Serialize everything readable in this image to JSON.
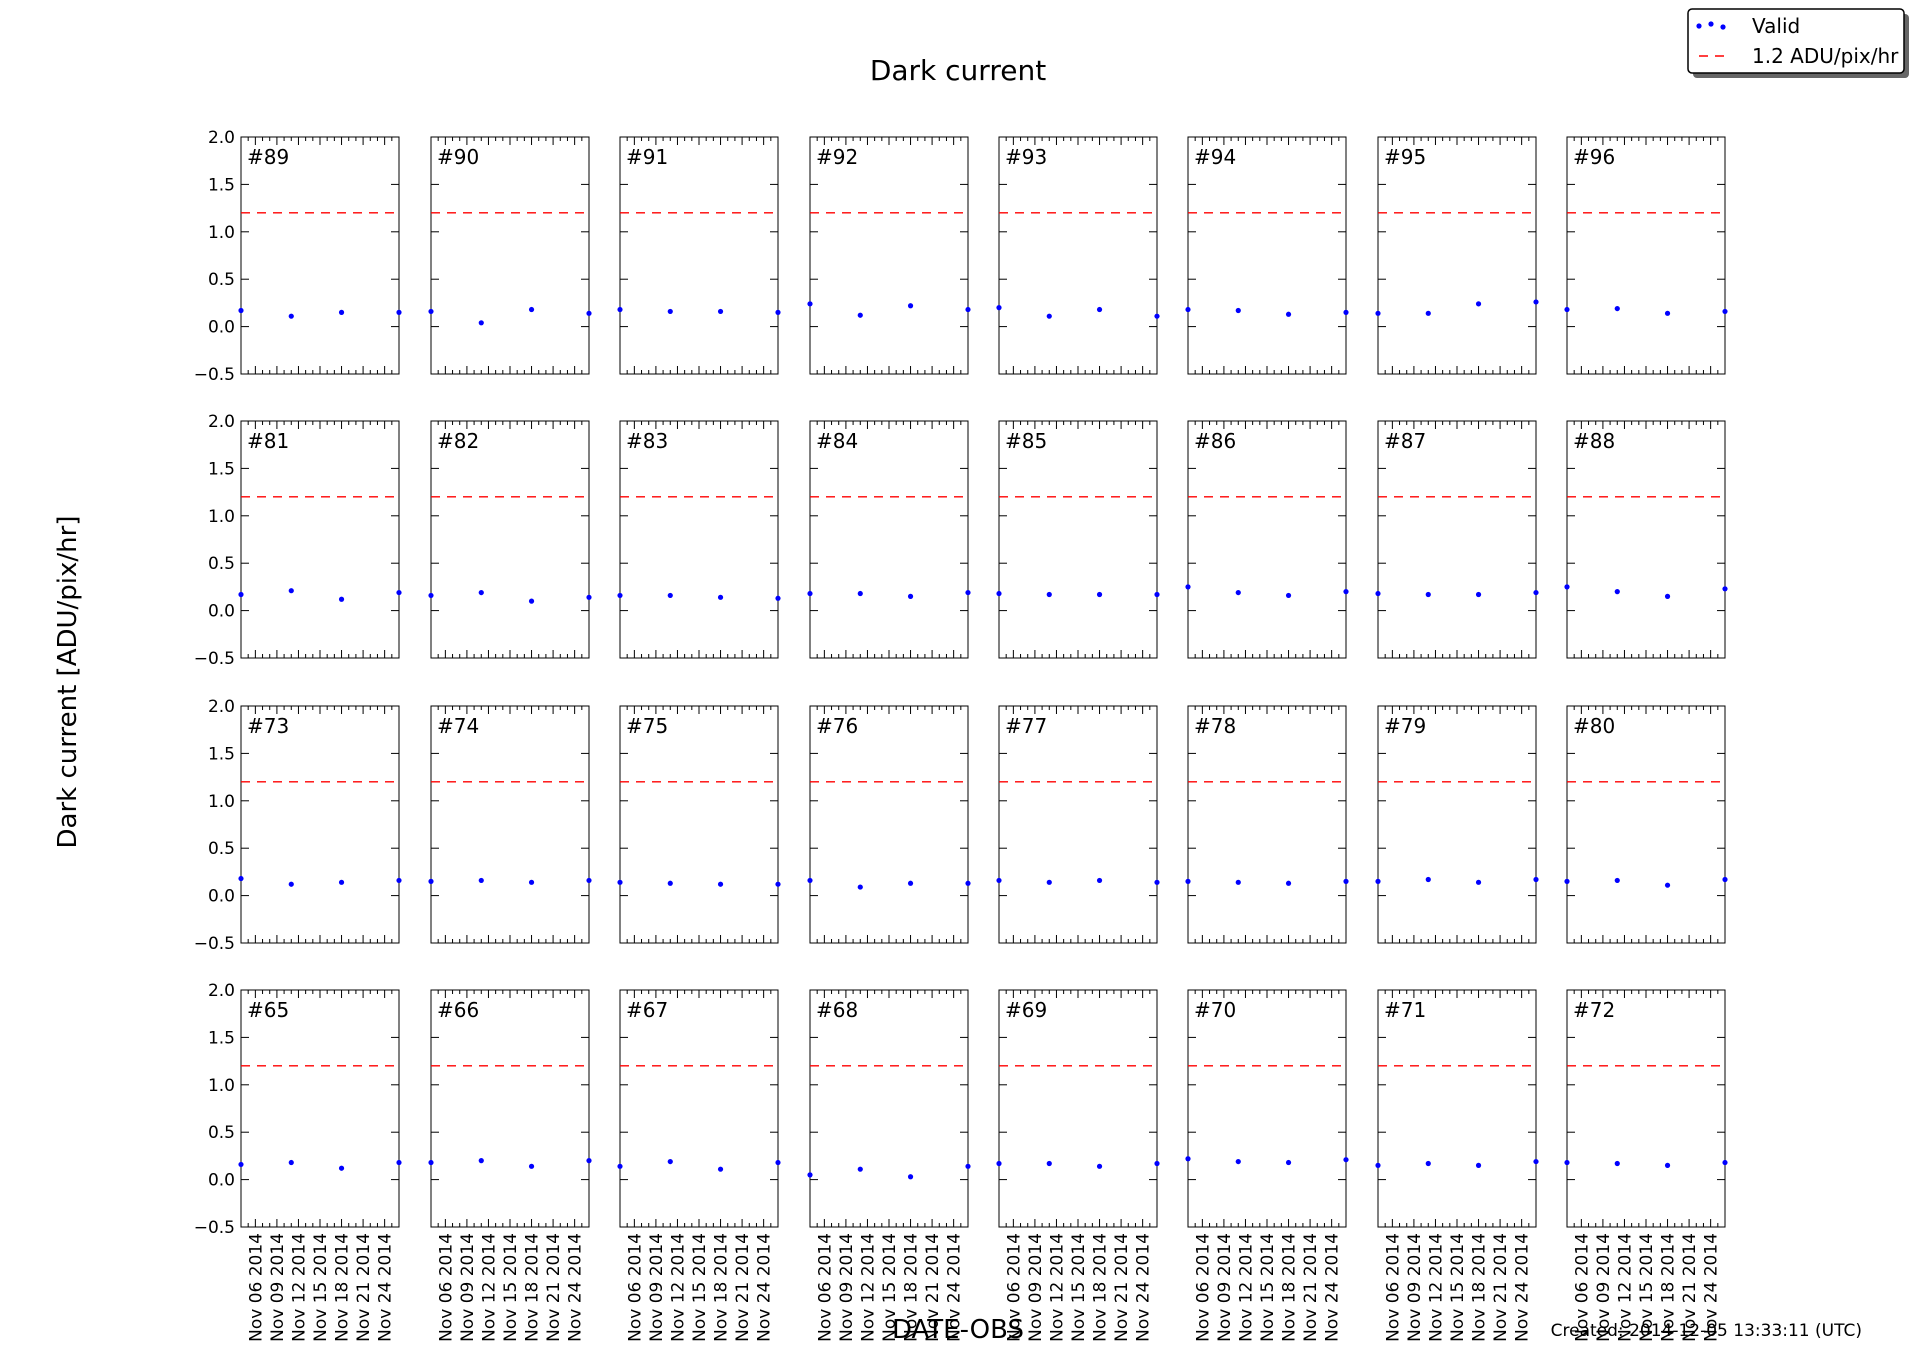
{
  "chart_data": {
    "type": "scatter",
    "title": "Dark current",
    "ylabel": "Dark current [ADU/pix/hr]",
    "xlabel": "DATE-OBS",
    "ylim": [
      -0.5,
      2.0
    ],
    "yticks": [
      "−0.5",
      "0.0",
      "0.5",
      "1.0",
      "1.5",
      "2.0"
    ],
    "xlim": [
      "2014-11-04",
      "2014-11-26"
    ],
    "xticks": [
      "Nov 06 2014",
      "Nov 09 2014",
      "Nov 12 2014",
      "Nov 15 2014",
      "Nov 18 2014",
      "Nov 21 2014",
      "Nov 24 2014"
    ],
    "threshold": 1.2,
    "grid": false,
    "legend_position": "top-right",
    "legend": [
      {
        "name": "Valid",
        "color": "#0000ff",
        "marker": "dot"
      },
      {
        "name": "1.2 ADU/pix/hr",
        "color": "#ff0000",
        "marker": "dashed"
      }
    ],
    "point_dates": [
      "2014-11-04",
      "2014-11-11",
      "2014-11-18",
      "2014-11-26"
    ],
    "panels": [
      {
        "label": "#89",
        "values": [
          0.17,
          0.11,
          0.15,
          0.15
        ]
      },
      {
        "label": "#90",
        "values": [
          0.16,
          0.04,
          0.18,
          0.14
        ]
      },
      {
        "label": "#91",
        "values": [
          0.18,
          0.16,
          0.16,
          0.15
        ]
      },
      {
        "label": "#92",
        "values": [
          0.24,
          0.12,
          0.22,
          0.18
        ]
      },
      {
        "label": "#93",
        "values": [
          0.2,
          0.11,
          0.18,
          0.11
        ]
      },
      {
        "label": "#94",
        "values": [
          0.18,
          0.17,
          0.13,
          0.15
        ]
      },
      {
        "label": "#95",
        "values": [
          0.14,
          0.14,
          0.24,
          0.26
        ]
      },
      {
        "label": "#96",
        "values": [
          0.18,
          0.19,
          0.14,
          0.16
        ]
      },
      {
        "label": "#81",
        "values": [
          0.17,
          0.21,
          0.12,
          0.19
        ]
      },
      {
        "label": "#82",
        "values": [
          0.16,
          0.19,
          0.1,
          0.14
        ]
      },
      {
        "label": "#83",
        "values": [
          0.16,
          0.16,
          0.14,
          0.13
        ]
      },
      {
        "label": "#84",
        "values": [
          0.18,
          0.18,
          0.15,
          0.19
        ]
      },
      {
        "label": "#85",
        "values": [
          0.18,
          0.17,
          0.17,
          0.17
        ]
      },
      {
        "label": "#86",
        "values": [
          0.25,
          0.19,
          0.16,
          0.2
        ]
      },
      {
        "label": "#87",
        "values": [
          0.18,
          0.17,
          0.17,
          0.19
        ]
      },
      {
        "label": "#88",
        "values": [
          0.25,
          0.2,
          0.15,
          0.23
        ]
      },
      {
        "label": "#73",
        "values": [
          0.18,
          0.12,
          0.14,
          0.16
        ]
      },
      {
        "label": "#74",
        "values": [
          0.15,
          0.16,
          0.14,
          0.16
        ]
      },
      {
        "label": "#75",
        "values": [
          0.14,
          0.13,
          0.12,
          0.12
        ]
      },
      {
        "label": "#76",
        "values": [
          0.16,
          0.09,
          0.13,
          0.13
        ]
      },
      {
        "label": "#77",
        "values": [
          0.16,
          0.14,
          0.16,
          0.14
        ]
      },
      {
        "label": "#78",
        "values": [
          0.15,
          0.14,
          0.13,
          0.15
        ]
      },
      {
        "label": "#79",
        "values": [
          0.15,
          0.17,
          0.14,
          0.17
        ]
      },
      {
        "label": "#80",
        "values": [
          0.15,
          0.16,
          0.11,
          0.17
        ]
      },
      {
        "label": "#65",
        "values": [
          0.16,
          0.18,
          0.12,
          0.18
        ]
      },
      {
        "label": "#66",
        "values": [
          0.18,
          0.2,
          0.14,
          0.2
        ]
      },
      {
        "label": "#67",
        "values": [
          0.14,
          0.19,
          0.11,
          0.18
        ]
      },
      {
        "label": "#68",
        "values": [
          0.05,
          0.11,
          0.03,
          0.14
        ]
      },
      {
        "label": "#69",
        "values": [
          0.17,
          0.17,
          0.14,
          0.17
        ]
      },
      {
        "label": "#70",
        "values": [
          0.22,
          0.19,
          0.18,
          0.21
        ]
      },
      {
        "label": "#71",
        "values": [
          0.15,
          0.17,
          0.15,
          0.19
        ]
      },
      {
        "label": "#72",
        "values": [
          0.18,
          0.17,
          0.15,
          0.18
        ]
      }
    ],
    "annotation": "Created: 2014-12-05 13:33:11 (UTC)"
  }
}
